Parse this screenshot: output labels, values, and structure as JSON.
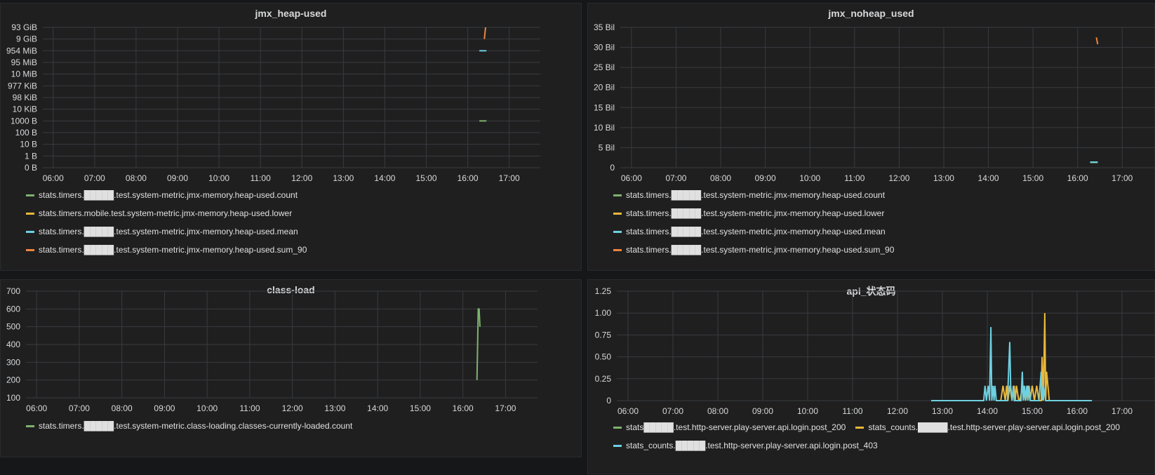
{
  "panels": [
    {
      "title": "jmx_heap-used",
      "legend": [
        {
          "label": "stats.timers.█████.test.system-metric.jmx-memory.heap-used.count",
          "color": "#7eb26d"
        },
        {
          "label": "stats.timers.mobile.test.system-metric.jmx-memory.heap-used.lower",
          "color": "#eab839"
        },
        {
          "label": "stats.timers.█████.test.system-metric.jmx-memory.heap-used.mean",
          "color": "#6ed0e0"
        },
        {
          "label": "stats.timers.█████.test.system-metric.jmx-memory.heap-used.sum_90",
          "color": "#ef843c"
        }
      ]
    },
    {
      "title": "jmx_noheap_used",
      "legend": [
        {
          "label": "stats.timers.█████.test.system-metric.jmx-memory.heap-used.count",
          "color": "#7eb26d"
        },
        {
          "label": "stats.timers.█████.test.system-metric.jmx-memory.heap-used.lower",
          "color": "#eab839"
        },
        {
          "label": "stats.timers.█████.test.system-metric.jmx-memory.heap-used.mean",
          "color": "#6ed0e0"
        },
        {
          "label": "stats.timers.█████.test.system-metric.jmx-memory.heap-used.sum_90",
          "color": "#ef843c"
        }
      ]
    },
    {
      "title": "class-load",
      "legend": [
        {
          "label": "stats.timers.█████.test.system-metric.class-loading.classes-currently-loaded.count",
          "color": "#7eb26d"
        }
      ]
    },
    {
      "title": "api_状态码",
      "legend": [
        {
          "label": "stats█████.test.http-server.play-server.api.login.post_200",
          "color": "#7eb26d"
        },
        {
          "label": "stats_counts.█████.test.http-server.play-server.api.login.post_200",
          "color": "#eab839"
        },
        {
          "label": "stats_counts.█████.test.http-server.play-server.api.login.post_403",
          "color": "#6ed0e0"
        }
      ]
    }
  ],
  "chart_data": [
    {
      "type": "line",
      "title": "jmx_heap-used",
      "x_ticks": [
        "06:00",
        "07:00",
        "08:00",
        "09:00",
        "10:00",
        "11:00",
        "12:00",
        "13:00",
        "14:00",
        "15:00",
        "16:00",
        "17:00"
      ],
      "y_ticks": [
        "0 B",
        "1 B",
        "10 B",
        "100 B",
        "1000 B",
        "10 KiB",
        "98 KiB",
        "977 KiB",
        "10 MiB",
        "95 MiB",
        "954 MiB",
        "9 GiB",
        "93 GiB"
      ],
      "y_scale": "log",
      "grid": true,
      "legend_position": "bottom",
      "series": [
        {
          "name": "stats.timers.█████.test.system-metric.jmx-memory.heap-used.count",
          "x": [
            16.28,
            16.45
          ],
          "y": [
            "1000 B",
            "1000 B"
          ]
        },
        {
          "name": "stats.timers.mobile.test.system-metric.jmx-memory.heap-used.lower",
          "x": [],
          "y": []
        },
        {
          "name": "stats.timers.█████.test.system-metric.jmx-memory.heap-used.mean",
          "x": [
            16.28,
            16.45
          ],
          "y": [
            "954 MiB",
            "954 MiB"
          ]
        },
        {
          "name": "stats.timers.█████.test.system-metric.jmx-memory.heap-used.sum_90",
          "x": [
            16.4,
            16.43
          ],
          "y": [
            "9 GiB",
            "93 GiB"
          ]
        }
      ]
    },
    {
      "type": "line",
      "title": "jmx_noheap_used",
      "x_ticks": [
        "06:00",
        "07:00",
        "08:00",
        "09:00",
        "10:00",
        "11:00",
        "12:00",
        "13:00",
        "14:00",
        "15:00",
        "16:00",
        "17:00"
      ],
      "y_ticks": [
        "0",
        "5 Bil",
        "10 Bil",
        "15 Bil",
        "20 Bil",
        "25 Bil",
        "30 Bil",
        "35 Bil"
      ],
      "ylim": [
        0,
        35
      ],
      "grid": true,
      "legend_position": "bottom",
      "series": [
        {
          "name": "stats.timers.█████.test.system-metric.jmx-memory.heap-used.count",
          "x": [
            16.28,
            16.45
          ],
          "y": [
            1.3,
            1.3
          ]
        },
        {
          "name": "stats.timers.█████.test.system-metric.jmx-memory.heap-used.lower",
          "x": [],
          "y": []
        },
        {
          "name": "stats.timers.█████.test.system-metric.jmx-memory.heap-used.mean",
          "x": [
            16.28,
            16.45
          ],
          "y": [
            1.4,
            1.4
          ]
        },
        {
          "name": "stats.timers.█████.test.system-metric.jmx-memory.heap-used.sum_90",
          "x": [
            16.42,
            16.45
          ],
          "y": [
            32.5,
            30.8
          ]
        }
      ]
    },
    {
      "type": "line",
      "title": "class-load",
      "x_ticks": [
        "06:00",
        "07:00",
        "08:00",
        "09:00",
        "10:00",
        "11:00",
        "12:00",
        "13:00",
        "14:00",
        "15:00",
        "16:00",
        "17:00"
      ],
      "y_ticks": [
        "100",
        "200",
        "300",
        "400",
        "500",
        "600",
        "700"
      ],
      "ylim": [
        100,
        700
      ],
      "grid": true,
      "legend_position": "bottom",
      "series": [
        {
          "name": "stats.timers.█████.test.system-metric.class-loading.classes-currently-loaded.count",
          "x": [
            16.33,
            16.36,
            16.38,
            16.4
          ],
          "y": [
            200,
            600,
            600,
            500
          ]
        }
      ]
    },
    {
      "type": "line",
      "title": "api_状态码",
      "x_ticks": [
        "06:00",
        "07:00",
        "08:00",
        "09:00",
        "10:00",
        "11:00",
        "12:00",
        "13:00",
        "14:00",
        "15:00",
        "16:00",
        "17:00"
      ],
      "y_ticks": [
        "0",
        "0.25",
        "0.50",
        "0.75",
        "1.00",
        "1.25"
      ],
      "ylim": [
        0,
        1.25
      ],
      "grid": true,
      "legend_position": "bottom",
      "series": [
        {
          "name": "stats█████.test.http-server.play-server.api.login.post_200",
          "x": [],
          "y": []
        },
        {
          "name": "stats_counts.█████.test.http-server.play-server.api.login.post_200",
          "x": [
            14.3,
            14.35,
            14.4,
            14.43,
            14.46,
            14.5,
            14.55,
            14.6,
            14.62,
            14.65,
            14.7,
            14.72,
            14.8,
            14.85,
            14.9,
            14.95,
            15.0,
            15.05,
            15.1,
            15.15,
            15.2,
            15.22,
            15.25,
            15.28,
            15.3,
            15.32,
            15.35,
            15.38,
            15.4
          ],
          "y": [
            0,
            0.17,
            0,
            0.17,
            0,
            0.17,
            0,
            0.17,
            0,
            0.17,
            0,
            0,
            0.17,
            0,
            0.17,
            0,
            0.17,
            0,
            0.17,
            0,
            0,
            0.5,
            0,
            1.0,
            0,
            0.33,
            0.17,
            0,
            0
          ]
        },
        {
          "name": "stats_counts.█████.test.http-server.play-server.api.login.post_403",
          "x": [
            12.75,
            13.8,
            13.92,
            13.95,
            13.98,
            14.02,
            14.05,
            14.08,
            14.1,
            14.13,
            14.15,
            14.17,
            14.2,
            14.4,
            14.45,
            14.5,
            14.52,
            14.55,
            14.58,
            14.6,
            14.63,
            14.7,
            14.75,
            14.78,
            14.8,
            14.83,
            14.85,
            14.88,
            14.9,
            14.93,
            14.96,
            15.0,
            15.1,
            15.15,
            15.2,
            15.22,
            15.25,
            15.3,
            15.35,
            15.4,
            15.5,
            16.0,
            16.33
          ],
          "y": [
            0,
            0,
            0,
            0.17,
            0,
            0.17,
            0,
            0.84,
            0,
            0.17,
            0,
            0.17,
            0,
            0,
            0,
            0.67,
            0.17,
            0,
            0.17,
            0,
            0,
            0,
            0,
            0.33,
            0,
            0.17,
            0,
            0.17,
            0,
            0.17,
            0,
            0,
            0,
            0,
            0.33,
            0,
            0.17,
            0,
            0,
            0,
            0,
            0,
            0
          ]
        }
      ]
    }
  ]
}
